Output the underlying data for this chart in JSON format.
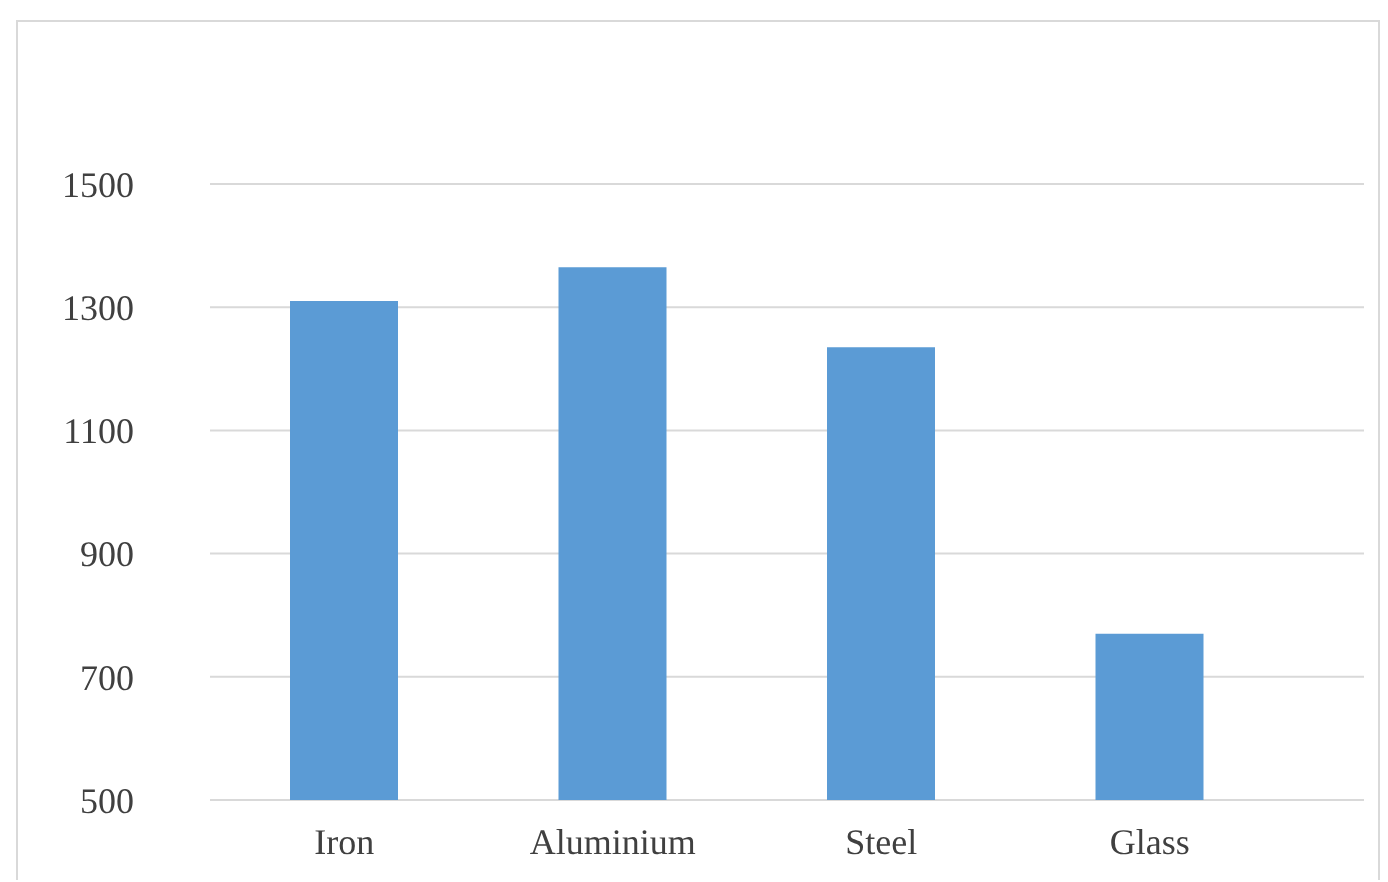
{
  "chart_data": {
    "type": "bar",
    "categories": [
      "Iron",
      "Aluminium",
      "Steel",
      "Glass"
    ],
    "values": [
      1310,
      1365,
      1235,
      770
    ],
    "color": "#5b9bd5",
    "ylim": [
      500,
      1500
    ],
    "yticks": [
      500,
      700,
      900,
      1100,
      1300,
      1500
    ],
    "grid": "y"
  }
}
